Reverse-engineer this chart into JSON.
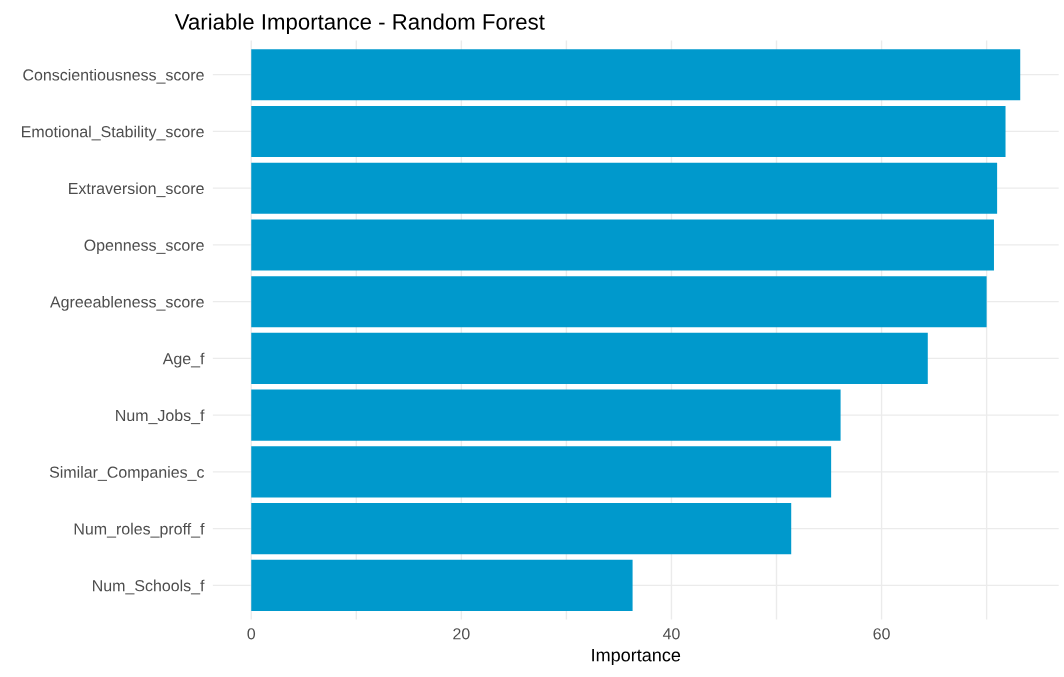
{
  "chart_data": {
    "type": "bar",
    "orientation": "horizontal",
    "title": "Variable Importance - Random Forest",
    "xlabel": "Importance",
    "categories": [
      "Conscientiousness_score",
      "Emotional_Stability_score",
      "Extraversion_score",
      "Openness_score",
      "Agreeableness_score",
      "Age_f",
      "Num_Jobs_f",
      "Similar_Companies_c",
      "Num_roles_proff_f",
      "Num_Schools_f"
    ],
    "values": [
      73.2,
      71.8,
      71.0,
      70.7,
      70.0,
      64.4,
      56.1,
      55.2,
      51.4,
      36.3
    ],
    "color": "#0099cc",
    "xlim": [
      -3.66,
      76.86
    ],
    "xticks": [
      0,
      {
        "value": 10,
        "label": null
      },
      20,
      {
        "value": 30,
        "label": null
      },
      40,
      {
        "value": 50,
        "label": null
      },
      60,
      {
        "value": 70,
        "label": null
      }
    ],
    "grid": true
  }
}
